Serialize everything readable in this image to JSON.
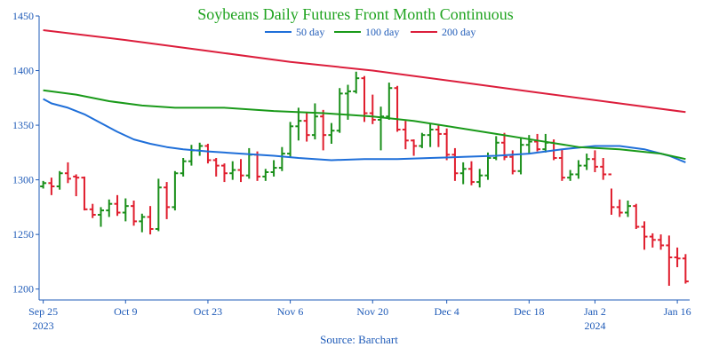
{
  "chart_data": {
    "type": "line",
    "title": "Soybeans Daily Futures Front Month Continuous",
    "source": "Source: Barchart",
    "colors": {
      "up": "#1a8f1a",
      "down": "#e01e2e",
      "ma50": "#1f6fd9",
      "ma100": "#1a9a1a",
      "ma200": "#dc1e3c",
      "text": "#1f5bb8",
      "title": "#1fa31f",
      "axis": "#1f5bb8"
    },
    "ylim": [
      1190,
      1450
    ],
    "y_ticks": [
      "1450",
      "1400",
      "1350",
      "1300",
      "1250",
      "1200"
    ],
    "y_tick_values": [
      1450,
      1400,
      1350,
      1300,
      1250,
      1200
    ],
    "x_ticks": [
      {
        "day": 0,
        "label": "Sep 25",
        "year": "2023"
      },
      {
        "day": 10,
        "label": "Oct 9",
        "year": ""
      },
      {
        "day": 20,
        "label": "Oct 23",
        "year": ""
      },
      {
        "day": 30,
        "label": "Nov 6",
        "year": ""
      },
      {
        "day": 40,
        "label": "Nov 20",
        "year": ""
      },
      {
        "day": 49,
        "label": "Dec 4",
        "year": ""
      },
      {
        "day": 59,
        "label": "Dec 18",
        "year": ""
      },
      {
        "day": 67,
        "label": "Jan 2",
        "year": "2024"
      },
      {
        "day": 77,
        "label": "Jan 16",
        "year": ""
      }
    ],
    "xlim": [
      -0.5,
      78.5
    ],
    "legend": [
      {
        "name": "50 day",
        "color": "#1f6fd9"
      },
      {
        "name": "100 day",
        "color": "#1a9a1a"
      },
      {
        "name": "200 day",
        "color": "#dc1e3c"
      }
    ],
    "series": [
      {
        "name": "50 day",
        "points": [
          [
            0,
            1374
          ],
          [
            1,
            1370
          ],
          [
            3,
            1366
          ],
          [
            5,
            1360
          ],
          [
            7,
            1352
          ],
          [
            9,
            1344
          ],
          [
            11,
            1337
          ],
          [
            13,
            1333
          ],
          [
            15,
            1330
          ],
          [
            17,
            1328
          ],
          [
            20,
            1326
          ],
          [
            24,
            1324
          ],
          [
            28,
            1322
          ],
          [
            31,
            1320
          ],
          [
            35,
            1318
          ],
          [
            39,
            1319
          ],
          [
            43,
            1319
          ],
          [
            47,
            1320
          ],
          [
            51,
            1321
          ],
          [
            55,
            1322
          ],
          [
            59,
            1324
          ],
          [
            63,
            1328
          ],
          [
            67,
            1331
          ],
          [
            70,
            1331
          ],
          [
            73,
            1328
          ],
          [
            76,
            1322
          ],
          [
            78,
            1316
          ]
        ]
      },
      {
        "name": "100 day",
        "points": [
          [
            0,
            1382
          ],
          [
            4,
            1378
          ],
          [
            8,
            1372
          ],
          [
            12,
            1368
          ],
          [
            16,
            1366
          ],
          [
            22,
            1366
          ],
          [
            28,
            1363
          ],
          [
            34,
            1361
          ],
          [
            40,
            1358
          ],
          [
            45,
            1354
          ],
          [
            50,
            1348
          ],
          [
            55,
            1342
          ],
          [
            60,
            1336
          ],
          [
            65,
            1330
          ],
          [
            70,
            1328
          ],
          [
            75,
            1324
          ],
          [
            78,
            1319
          ]
        ]
      },
      {
        "name": "200 day",
        "points": [
          [
            0,
            1437
          ],
          [
            10,
            1428
          ],
          [
            20,
            1418
          ],
          [
            30,
            1408
          ],
          [
            40,
            1400
          ],
          [
            50,
            1390
          ],
          [
            60,
            1380
          ],
          [
            70,
            1370
          ],
          [
            78,
            1362
          ]
        ]
      }
    ],
    "bars": [
      [
        0,
        1294,
        1299,
        1292,
        1297
      ],
      [
        1,
        1297,
        1302,
        1286,
        1294
      ],
      [
        2,
        1294,
        1308,
        1291,
        1306
      ],
      [
        3,
        1306,
        1316,
        1297,
        1301
      ],
      [
        4,
        1303,
        1305,
        1285,
        1302
      ],
      [
        5,
        1302,
        1303,
        1272,
        1273
      ],
      [
        6,
        1273,
        1278,
        1265,
        1268
      ],
      [
        7,
        1268,
        1275,
        1257,
        1272
      ],
      [
        8,
        1272,
        1282,
        1266,
        1278
      ],
      [
        9,
        1278,
        1286,
        1267,
        1270
      ],
      [
        10,
        1270,
        1283,
        1262,
        1276
      ],
      [
        11,
        1276,
        1281,
        1258,
        1262
      ],
      [
        12,
        1262,
        1269,
        1252,
        1266
      ],
      [
        13,
        1266,
        1276,
        1250,
        1255
      ],
      [
        14,
        1255,
        1301,
        1253,
        1293
      ],
      [
        15,
        1293,
        1298,
        1264,
        1275
      ],
      [
        16,
        1275,
        1308,
        1272,
        1306
      ],
      [
        17,
        1306,
        1320,
        1303,
        1317
      ],
      [
        18,
        1317,
        1332,
        1313,
        1327
      ],
      [
        19,
        1327,
        1334,
        1322,
        1331
      ],
      [
        20,
        1331,
        1333,
        1315,
        1318
      ],
      [
        21,
        1318,
        1320,
        1303,
        1313
      ],
      [
        22,
        1313,
        1315,
        1298,
        1306
      ],
      [
        23,
        1306,
        1317,
        1300,
        1309
      ],
      [
        24,
        1309,
        1319,
        1298,
        1304
      ],
      [
        25,
        1304,
        1329,
        1301,
        1323
      ],
      [
        26,
        1323,
        1326,
        1299,
        1303
      ],
      [
        27,
        1303,
        1310,
        1299,
        1307
      ],
      [
        28,
        1307,
        1318,
        1303,
        1311
      ],
      [
        29,
        1311,
        1330,
        1308,
        1324
      ],
      [
        30,
        1324,
        1353,
        1320,
        1349
      ],
      [
        31,
        1349,
        1366,
        1336,
        1354
      ],
      [
        32,
        1354,
        1362,
        1335,
        1341
      ],
      [
        33,
        1341,
        1370,
        1337,
        1358
      ],
      [
        34,
        1358,
        1364,
        1327,
        1341
      ],
      [
        35,
        1341,
        1352,
        1333,
        1345
      ],
      [
        36,
        1345,
        1384,
        1343,
        1379
      ],
      [
        37,
        1379,
        1387,
        1355,
        1381
      ],
      [
        38,
        1381,
        1399,
        1379,
        1393
      ],
      [
        39,
        1393,
        1395,
        1353,
        1361
      ],
      [
        40,
        1361,
        1378,
        1351,
        1355
      ],
      [
        41,
        1355,
        1367,
        1327,
        1358
      ],
      [
        42,
        1358,
        1389,
        1355,
        1384
      ],
      [
        43,
        1384,
        1386,
        1344,
        1346
      ],
      [
        44,
        1346,
        1354,
        1328,
        1336
      ],
      [
        45,
        1336,
        1337,
        1322,
        1331
      ],
      [
        46,
        1331,
        1343,
        1329,
        1341
      ],
      [
        47,
        1341,
        1351,
        1330,
        1346
      ],
      [
        48,
        1346,
        1350,
        1330,
        1342
      ],
      [
        49,
        1342,
        1347,
        1318,
        1323
      ],
      [
        50,
        1323,
        1329,
        1299,
        1306
      ],
      [
        51,
        1306,
        1316,
        1296,
        1310
      ],
      [
        52,
        1310,
        1317,
        1295,
        1298
      ],
      [
        53,
        1298,
        1310,
        1293,
        1304
      ],
      [
        54,
        1304,
        1325,
        1300,
        1320
      ],
      [
        55,
        1320,
        1340,
        1318,
        1334
      ],
      [
        56,
        1334,
        1343,
        1318,
        1321
      ],
      [
        57,
        1321,
        1327,
        1305,
        1308
      ],
      [
        58,
        1308,
        1338,
        1305,
        1332
      ],
      [
        59,
        1332,
        1341,
        1324,
        1335
      ],
      [
        60,
        1335,
        1342,
        1326,
        1328
      ],
      [
        61,
        1328,
        1342,
        1325,
        1334
      ],
      [
        62,
        1334,
        1337,
        1318,
        1320
      ],
      [
        63,
        1320,
        1328,
        1299,
        1302
      ],
      [
        64,
        1302,
        1309,
        1299,
        1305
      ],
      [
        65,
        1305,
        1318,
        1301,
        1313
      ],
      [
        66,
        1313,
        1324,
        1309,
        1319
      ],
      [
        67,
        1319,
        1327,
        1307,
        1312
      ],
      [
        68,
        1312,
        1320,
        1300,
        1305
      ],
      [
        69,
        1305,
        1292,
        1268,
        1275
      ],
      [
        70,
        1275,
        1282,
        1266,
        1270
      ],
      [
        71,
        1270,
        1281,
        1266,
        1276
      ],
      [
        72,
        1276,
        1278,
        1255,
        1257
      ],
      [
        73,
        1257,
        1262,
        1236,
        1248
      ],
      [
        74,
        1248,
        1251,
        1238,
        1245
      ],
      [
        75,
        1245,
        1250,
        1236,
        1240
      ],
      [
        76,
        1240,
        1249,
        1203,
        1229
      ],
      [
        77,
        1229,
        1238,
        1220,
        1228
      ],
      [
        78,
        1228,
        1232,
        1205,
        1207
      ]
    ]
  }
}
